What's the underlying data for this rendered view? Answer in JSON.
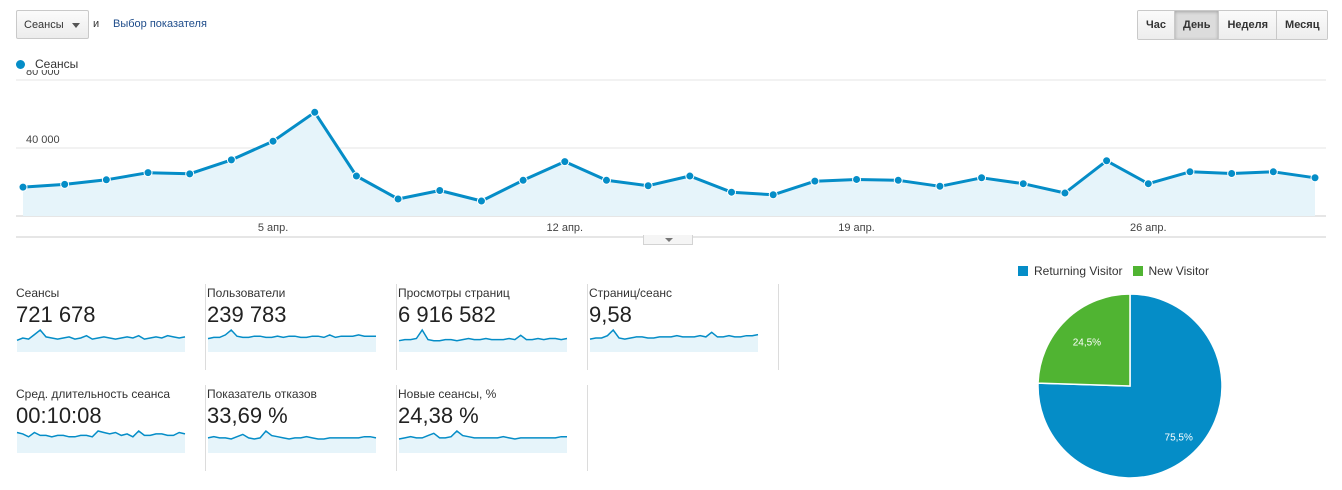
{
  "toolbar": {
    "metric_select_label": "Сеансы",
    "and_text": "и",
    "choose_metric_link": "Выбор показателя",
    "periods": [
      {
        "label": "Час",
        "active": false
      },
      {
        "label": "День",
        "active": true
      },
      {
        "label": "Неделя",
        "active": false
      },
      {
        "label": "Месяц",
        "active": false
      }
    ]
  },
  "colors": {
    "series": "#058dc7",
    "series_fill": "#e6f4fa",
    "returning": "#058dc7",
    "new": "#50b432"
  },
  "chart_data": {
    "type": "line",
    "series": [
      {
        "name": "Сеансы",
        "values": [
          17000,
          18600,
          21300,
          25500,
          24800,
          33000,
          44000,
          61000,
          23500,
          10000,
          15000,
          8800,
          21000,
          32000,
          21000,
          17800,
          23500,
          14000,
          12500,
          20500,
          21500,
          21000,
          17500,
          22500,
          19000,
          13500,
          32500,
          19000,
          26000,
          25000,
          26000,
          22500
        ]
      }
    ],
    "y_ticks": [
      40000,
      80000
    ],
    "y_tick_labels": [
      "40 000",
      "80 000"
    ],
    "ylim": [
      0,
      80000
    ],
    "x_tick_labels": [
      {
        "index": 6,
        "label": "5 апр."
      },
      {
        "index": 13,
        "label": "12 апр."
      },
      {
        "index": 20,
        "label": "19 апр."
      },
      {
        "index": 27,
        "label": "26 апр."
      }
    ],
    "grid": true,
    "legend": "top-left"
  },
  "scorecards": [
    {
      "label": "Сеансы",
      "value": "721 678",
      "spark": [
        5,
        7,
        6,
        10,
        14,
        8,
        7,
        6,
        7,
        8,
        6,
        7,
        9,
        6,
        7,
        8,
        7,
        6,
        7,
        8,
        7,
        9,
        6,
        7,
        8,
        7,
        9,
        8,
        7,
        8
      ]
    },
    {
      "label": "Пользователи",
      "value": "239 783",
      "spark": [
        6,
        7,
        7,
        9,
        13,
        8,
        7,
        7,
        8,
        8,
        7,
        7,
        8,
        7,
        8,
        8,
        7,
        7,
        8,
        8,
        7,
        9,
        7,
        8,
        8,
        8,
        9,
        8,
        8,
        8
      ]
    },
    {
      "label": "Просмотры страниц",
      "value": "6 916 582",
      "spark": [
        5,
        6,
        6,
        7,
        15,
        6,
        5,
        5,
        6,
        6,
        5,
        6,
        7,
        6,
        6,
        7,
        6,
        6,
        6,
        7,
        6,
        10,
        6,
        6,
        7,
        6,
        7,
        7,
        6,
        7
      ]
    },
    {
      "label": "Страниц/сеанс",
      "value": "9,58",
      "spark": [
        6,
        7,
        7,
        9,
        14,
        7,
        6,
        7,
        8,
        8,
        7,
        7,
        8,
        8,
        8,
        9,
        8,
        8,
        8,
        9,
        8,
        12,
        8,
        8,
        9,
        8,
        8,
        9,
        9,
        10
      ]
    },
    {
      "label": "Сред. длительность сеанса",
      "value": "00:10:08",
      "spark": [
        10,
        9,
        7,
        10,
        8,
        8,
        7,
        8,
        8,
        7,
        7,
        8,
        8,
        7,
        11,
        10,
        9,
        10,
        8,
        9,
        7,
        11,
        8,
        8,
        9,
        9,
        8,
        8,
        10,
        9
      ]
    },
    {
      "label": "Показатель отказов",
      "value": "33,69 %",
      "spark": [
        8,
        9,
        8,
        8,
        7,
        9,
        11,
        8,
        7,
        8,
        14,
        10,
        9,
        8,
        7,
        8,
        8,
        9,
        8,
        7,
        7,
        8,
        8,
        8,
        8,
        8,
        8,
        9,
        9,
        8
      ]
    },
    {
      "label": "Новые сеансы, %",
      "value": "24,38 %",
      "spark": [
        7,
        8,
        9,
        8,
        8,
        10,
        12,
        8,
        8,
        9,
        14,
        10,
        9,
        8,
        8,
        8,
        8,
        8,
        9,
        8,
        7,
        8,
        8,
        8,
        8,
        8,
        8,
        8,
        9,
        9
      ]
    }
  ],
  "pie": {
    "legend": [
      {
        "name": "Returning Visitor",
        "value": 75.5,
        "label": "75,5%"
      },
      {
        "name": "New Visitor",
        "value": 24.5,
        "label": "24,5%"
      }
    ]
  }
}
